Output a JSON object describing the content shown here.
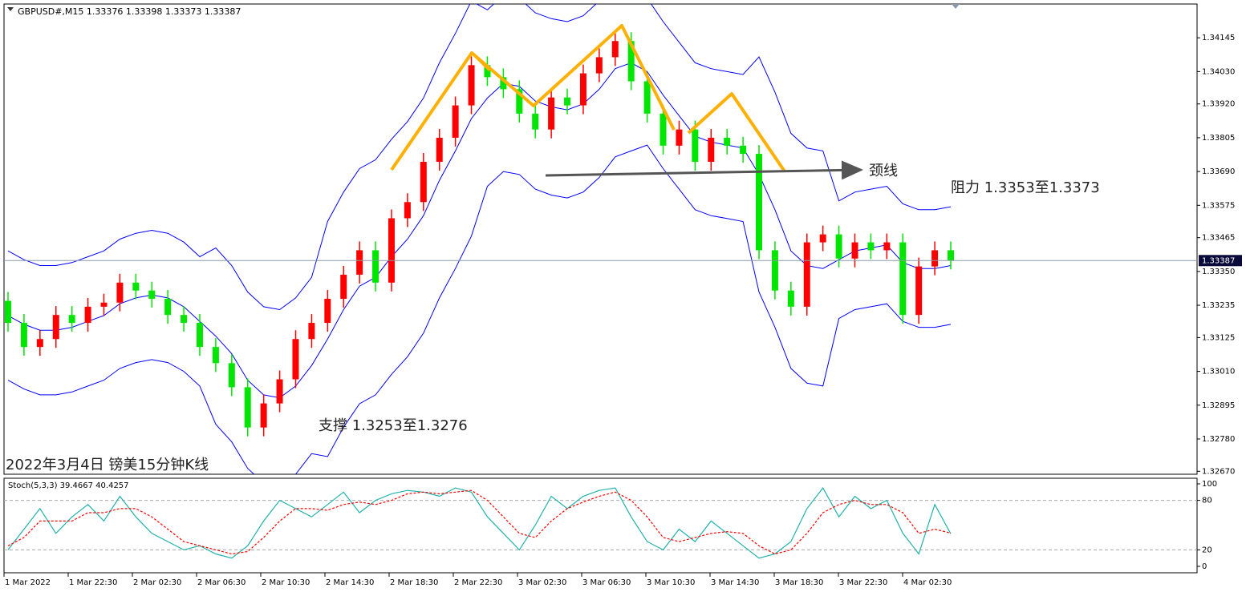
{
  "header": "GBPUSD#,M15  1.33376 1.33398 1.33373 1.33387",
  "chart_data": {
    "type": "candlestick",
    "open": [
      1.3325,
      1.33175,
      1.33093,
      1.3312,
      1.33202,
      1.33175,
      1.3323,
      1.33244,
      1.33312,
      1.33285,
      1.33257,
      1.33202,
      1.33175,
      1.33093,
      1.33038,
      1.32956,
      1.32819,
      1.32901,
      1.32983,
      1.3312,
      1.33175,
      1.33257,
      1.33339,
      1.33422,
      1.33312,
      1.33531,
      1.33586,
      1.33723,
      1.33805,
      1.33915,
      1.34052,
      1.34011,
      1.3397,
      1.33887,
      1.33833,
      1.33942,
      1.33915,
      1.34024,
      1.34079,
      1.34134,
      1.33997,
      1.33887,
      1.33778,
      1.33833,
      1.33723,
      1.33805,
      1.33778,
      1.3375,
      1.33422,
      1.33285,
      1.3323,
      1.33449,
      1.33476,
      1.33394,
      1.33449,
      1.33422,
      1.33449,
      1.33202,
      1.33367,
      1.33422
    ],
    "high": [
      1.3328,
      1.33205,
      1.3315,
      1.33232,
      1.33232,
      1.3326,
      1.33274,
      1.33342,
      1.33342,
      1.33315,
      1.33287,
      1.33232,
      1.33205,
      1.33123,
      1.33068,
      1.32986,
      1.32931,
      1.33013,
      1.3315,
      1.33205,
      1.33287,
      1.33369,
      1.33452,
      1.33452,
      1.33561,
      1.33616,
      1.33753,
      1.33835,
      1.33945,
      1.34082,
      1.34082,
      1.34041,
      1.34,
      1.33917,
      1.33972,
      1.33972,
      1.34054,
      1.34109,
      1.34164,
      1.34164,
      1.34027,
      1.33917,
      1.33863,
      1.33863,
      1.33835,
      1.33835,
      1.33808,
      1.3378,
      1.33452,
      1.33315,
      1.33479,
      1.33506,
      1.33506,
      1.33479,
      1.33479,
      1.33479,
      1.33479,
      1.33397,
      1.33452,
      1.33452
    ],
    "low": [
      1.33145,
      1.33063,
      1.33063,
      1.3309,
      1.33145,
      1.33145,
      1.332,
      1.33214,
      1.33255,
      1.33227,
      1.33172,
      1.33145,
      1.33063,
      1.33008,
      1.32926,
      1.32789,
      1.32789,
      1.32871,
      1.32953,
      1.3309,
      1.33145,
      1.33227,
      1.33309,
      1.33282,
      1.33282,
      1.33501,
      1.33556,
      1.33693,
      1.33775,
      1.33885,
      1.33981,
      1.3394,
      1.33857,
      1.33803,
      1.33803,
      1.33885,
      1.33885,
      1.33994,
      1.34049,
      1.33967,
      1.33857,
      1.33748,
      1.33748,
      1.33693,
      1.33693,
      1.33748,
      1.3372,
      1.33392,
      1.33255,
      1.332,
      1.332,
      1.33419,
      1.33364,
      1.33364,
      1.33392,
      1.33392,
      1.33172,
      1.33172,
      1.33337,
      1.33357
    ],
    "close": [
      1.33175,
      1.33093,
      1.3312,
      1.33202,
      1.33175,
      1.3323,
      1.33244,
      1.33312,
      1.33285,
      1.33257,
      1.33202,
      1.33175,
      1.33093,
      1.33038,
      1.32956,
      1.32819,
      1.32901,
      1.32983,
      1.3312,
      1.33175,
      1.33257,
      1.33339,
      1.33422,
      1.33312,
      1.33531,
      1.33586,
      1.33723,
      1.33805,
      1.33915,
      1.34052,
      1.34011,
      1.3397,
      1.33887,
      1.33833,
      1.33942,
      1.33915,
      1.34024,
      1.34079,
      1.34134,
      1.33997,
      1.33887,
      1.33778,
      1.33833,
      1.33723,
      1.33805,
      1.33778,
      1.3375,
      1.33422,
      1.33285,
      1.3323,
      1.33449,
      1.33476,
      1.33394,
      1.33449,
      1.33422,
      1.33449,
      1.33202,
      1.33367,
      1.33422,
      1.33387
    ],
    "up_color": "#ff0000",
    "down_color": "#00e600",
    "bands": {
      "color": "#0000ff",
      "upper": [
        1.3342,
        1.3339,
        1.3337,
        1.3337,
        1.3338,
        1.334,
        1.3342,
        1.3346,
        1.3348,
        1.3349,
        1.3348,
        1.3345,
        1.334,
        1.3343,
        1.3337,
        1.3328,
        1.3323,
        1.3322,
        1.3326,
        1.3333,
        1.3352,
        1.3362,
        1.337,
        1.3373,
        1.338,
        1.3386,
        1.3394,
        1.3406,
        1.3416,
        1.3427,
        1.3424,
        1.3429,
        1.3428,
        1.3423,
        1.3421,
        1.342,
        1.3422,
        1.3427,
        1.3434,
        1.3436,
        1.3428,
        1.342,
        1.3413,
        1.3406,
        1.3404,
        1.3403,
        1.3402,
        1.3408,
        1.3396,
        1.3382,
        1.3377,
        1.3376,
        1.3359,
        1.3362,
        1.3363,
        1.3364,
        1.3358,
        1.3356,
        1.3356,
        1.3357
      ],
      "middle": [
        1.332,
        1.3317,
        1.3315,
        1.3315,
        1.3316,
        1.3318,
        1.332,
        1.3324,
        1.3326,
        1.3327,
        1.3326,
        1.3323,
        1.3318,
        1.3313,
        1.3307,
        1.3298,
        1.3293,
        1.3292,
        1.3296,
        1.3303,
        1.3312,
        1.3322,
        1.333,
        1.3333,
        1.334,
        1.3346,
        1.3354,
        1.3366,
        1.3376,
        1.3387,
        1.3394,
        1.3399,
        1.3398,
        1.3393,
        1.3391,
        1.339,
        1.3392,
        1.3397,
        1.3404,
        1.3406,
        1.3403,
        1.3395,
        1.3388,
        1.3381,
        1.3379,
        1.3378,
        1.3377,
        1.3368,
        1.3356,
        1.3342,
        1.3337,
        1.3336,
        1.3339,
        1.3342,
        1.3343,
        1.3344,
        1.3338,
        1.3336,
        1.3336,
        1.3337
      ],
      "lower": [
        1.3298,
        1.3295,
        1.3293,
        1.3293,
        1.3294,
        1.3296,
        1.3298,
        1.3302,
        1.3304,
        1.3305,
        1.3304,
        1.3301,
        1.3296,
        1.3283,
        1.3277,
        1.3268,
        1.3263,
        1.3262,
        1.3266,
        1.3273,
        1.3272,
        1.3282,
        1.329,
        1.3293,
        1.33,
        1.3306,
        1.3314,
        1.3326,
        1.3336,
        1.3347,
        1.3364,
        1.3369,
        1.3368,
        1.3363,
        1.3361,
        1.336,
        1.3362,
        1.3367,
        1.3374,
        1.3376,
        1.3378,
        1.337,
        1.3363,
        1.3356,
        1.3354,
        1.3353,
        1.3352,
        1.3328,
        1.3316,
        1.3302,
        1.3297,
        1.3296,
        1.3319,
        1.3322,
        1.3323,
        1.3324,
        1.3318,
        1.3316,
        1.3316,
        1.3317
      ]
    },
    "ylim": [
      1.3266,
      1.3426
    ],
    "yticks": [
      1.34145,
      {
        "value": 1.3403,
        "label": "1.34030"
      },
      {
        "value": 1.3392,
        "label": "1.33920"
      },
      1.33805,
      {
        "value": 1.3369,
        "label": "1.33690"
      },
      1.33575,
      1.33465,
      {
        "value": 1.3335,
        "label": "1.33350"
      },
      1.33235,
      1.33125,
      {
        "value": 1.3301,
        "label": "1.33010"
      },
      1.32895,
      {
        "value": 1.3278,
        "label": "1.32780"
      },
      {
        "value": 1.3267,
        "label": "1.32670"
      }
    ],
    "last_price": 1.33387,
    "xlabels": [
      "1 Mar 2022",
      "1 Mar 22:30",
      "2 Mar 02:30",
      "2 Mar 06:30",
      "2 Mar 10:30",
      "2 Mar 14:30",
      "2 Mar 18:30",
      "2 Mar 22:30",
      "3 Mar 02:30",
      "3 Mar 06:30",
      "3 Mar 10:30",
      "3 Mar 14:30",
      "3 Mar 18:30",
      "3 Mar 22:30",
      "4 Mar 02:30"
    ],
    "annotations": {
      "neckline": "颈线",
      "resistance": "阻力 1.3353至1.3373",
      "support": "支撑 1.3253至1.3276",
      "caption": "2022年3月4日 镑美15分钟K线"
    }
  },
  "stoch": {
    "type": "line",
    "label": "Stoch(5,3,3) 39.4667 40.4257",
    "series": [
      {
        "color": "#20b2aa",
        "dash": false,
        "values": [
          20,
          45,
          70,
          40,
          60,
          75,
          55,
          85,
          60,
          40,
          30,
          20,
          25,
          15,
          10,
          25,
          55,
          80,
          70,
          60,
          75,
          90,
          65,
          80,
          88,
          92,
          90,
          85,
          95,
          90,
          60,
          40,
          20,
          50,
          85,
          70,
          85,
          92,
          95,
          60,
          30,
          20,
          45,
          30,
          55,
          40,
          25,
          10,
          15,
          30,
          70,
          95,
          60,
          85,
          70,
          80,
          40,
          15,
          75,
          39.4667
        ]
      },
      {
        "color": "#ff0000",
        "dash": true,
        "values": [
          25,
          35,
          55,
          55,
          55,
          65,
          65,
          70,
          70,
          60,
          45,
          30,
          25,
          20,
          15,
          18,
          35,
          55,
          70,
          70,
          68,
          75,
          78,
          75,
          80,
          88,
          90,
          88,
          90,
          92,
          80,
          60,
          40,
          35,
          55,
          70,
          78,
          85,
          90,
          80,
          60,
          35,
          30,
          35,
          40,
          42,
          40,
          25,
          15,
          20,
          40,
          65,
          75,
          80,
          75,
          75,
          65,
          40,
          45,
          40.4257
        ]
      }
    ],
    "ylim": [
      0,
      100
    ],
    "yticks": [
      100,
      80,
      20,
      0
    ],
    "grid": [
      80,
      20
    ]
  }
}
